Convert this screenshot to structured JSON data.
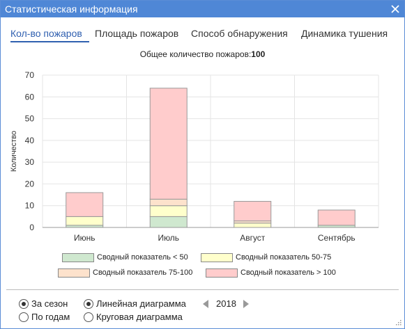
{
  "window": {
    "title": "Статистическая информация",
    "close_icon": "close-icon"
  },
  "tabs": [
    {
      "label": "Кол-во пожаров",
      "active": true
    },
    {
      "label": "Площадь пожаров",
      "active": false
    },
    {
      "label": "Способ обнаружения",
      "active": false
    },
    {
      "label": "Динамика тушения",
      "active": false
    }
  ],
  "summary": {
    "label": "Общее количество пожаров:",
    "value": "100"
  },
  "chart_data": {
    "type": "bar",
    "stacked": true,
    "categories": [
      "Июнь",
      "Июль",
      "Август",
      "Сентябрь"
    ],
    "series": [
      {
        "name": "Сводный показатель < 50",
        "color": "#cfe8cf",
        "values": [
          1,
          5,
          0,
          1
        ]
      },
      {
        "name": "Сводный показатель 50-75",
        "color": "#ffffcc",
        "values": [
          4,
          5,
          2,
          0
        ]
      },
      {
        "name": "Сводный показатель 75-100",
        "color": "#fde2cc",
        "values": [
          0,
          3,
          1,
          0
        ]
      },
      {
        "name": "Сводный показатель > 100",
        "color": "#ffcccc",
        "values": [
          11,
          51,
          9,
          7
        ]
      }
    ],
    "ylabel": "Количество",
    "ylim": [
      0,
      70
    ],
    "yticks": [
      0,
      10,
      20,
      30,
      40,
      50,
      60,
      70
    ],
    "grid": true,
    "legend": "bottom"
  },
  "controls": {
    "period_options": [
      {
        "label": "За сезон",
        "checked": true
      },
      {
        "label": "По годам",
        "checked": false
      }
    ],
    "chart_type_options": [
      {
        "label": "Линейная диаграмма",
        "checked": true
      },
      {
        "label": "Круговая диаграмма",
        "checked": false
      }
    ],
    "year": "2018"
  }
}
